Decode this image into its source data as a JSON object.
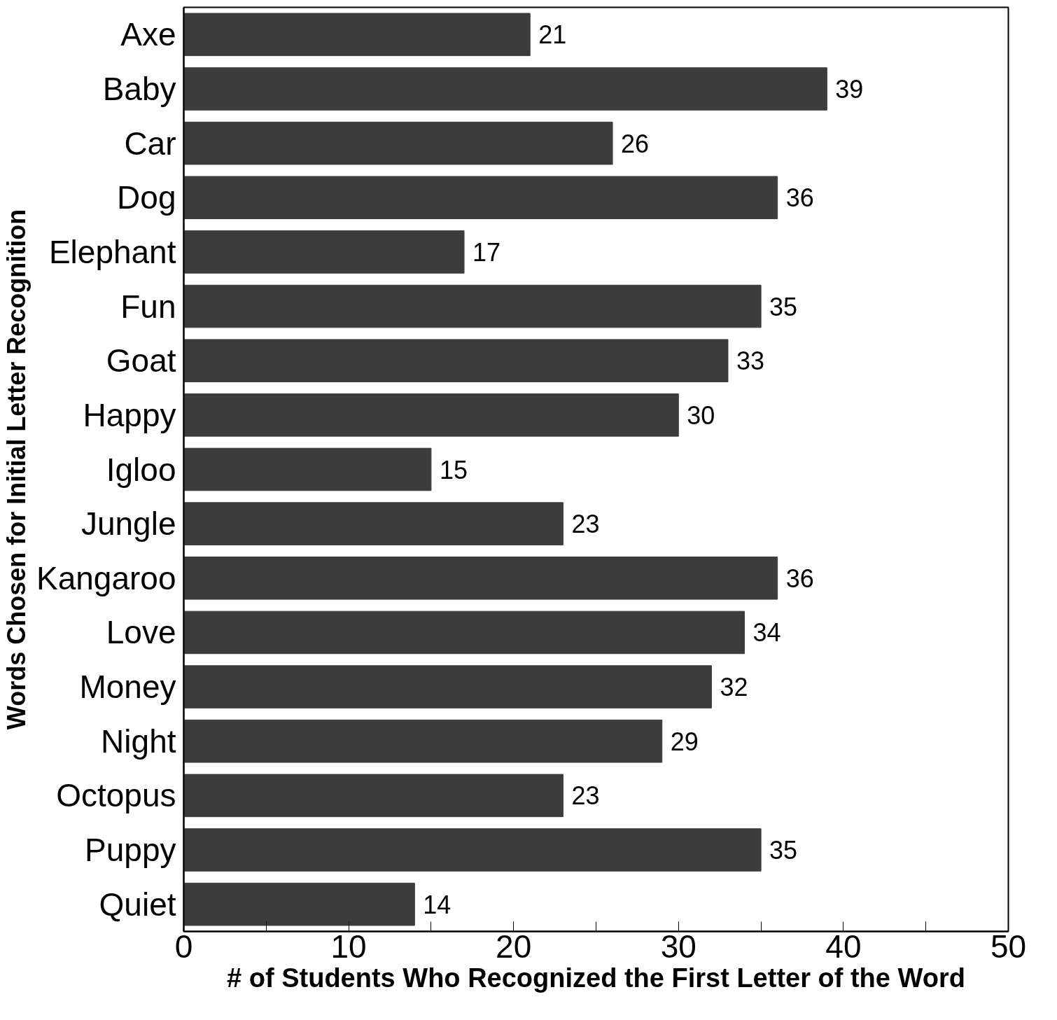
{
  "chart_data": {
    "type": "bar",
    "orientation": "horizontal",
    "xlabel": "# of Students Who Recognized the First Letter of the Word",
    "ylabel": "Words Chosen for Initial Letter Recognition",
    "categories": [
      "Axe",
      "Baby",
      "Car",
      "Dog",
      "Elephant",
      "Fun",
      "Goat",
      "Happy",
      "Igloo",
      "Jungle",
      "Kangaroo",
      "Love",
      "Money",
      "Night",
      "Octopus",
      "Puppy",
      "Quiet"
    ],
    "values": [
      21,
      39,
      26,
      36,
      17,
      35,
      33,
      30,
      15,
      23,
      36,
      34,
      32,
      29,
      23,
      35,
      14
    ],
    "color": "#3c3c3c",
    "data_labels": true,
    "grid": false,
    "xlim": [
      0,
      50
    ],
    "xticks": [
      0,
      {
        "value": 5,
        "label": null
      },
      10,
      {
        "value": 15,
        "label": null
      },
      20,
      {
        "value": 25,
        "label": null
      },
      30,
      {
        "value": 35,
        "label": null
      },
      40,
      {
        "value": 45,
        "label": null
      },
      50
    ]
  }
}
